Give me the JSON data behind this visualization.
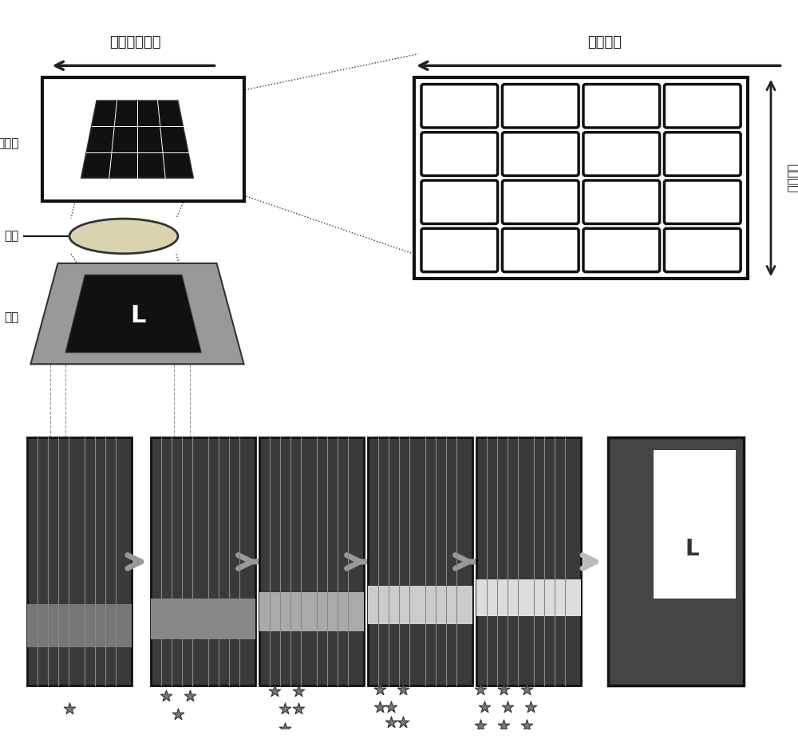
{
  "bg_color": "#ffffff",
  "top_left_label": "相对运动方向",
  "top_right_label": "级数方向",
  "sensor_label": "传感器",
  "lens_label": "镜头",
  "scene_label": "景物",
  "vertical_label": "纵轴方向",
  "arrow_color": "#222222",
  "grid_color": "#111111",
  "sensor_bg": "#ffffff",
  "sensor_chip_color": "#111111",
  "lens_color": "#d8d4c0",
  "scene_bg": "#aaaaaa",
  "scene_dark": "#222222",
  "panel_dark": "#3a3a3a",
  "panel_stripe_colors": [
    "#777777",
    "#888888",
    "#aaaaaa",
    "#cccccc",
    "#dddddd"
  ],
  "process_arrow_color": "#999999",
  "star_color": "#777777",
  "star_edge_color": "#333333"
}
